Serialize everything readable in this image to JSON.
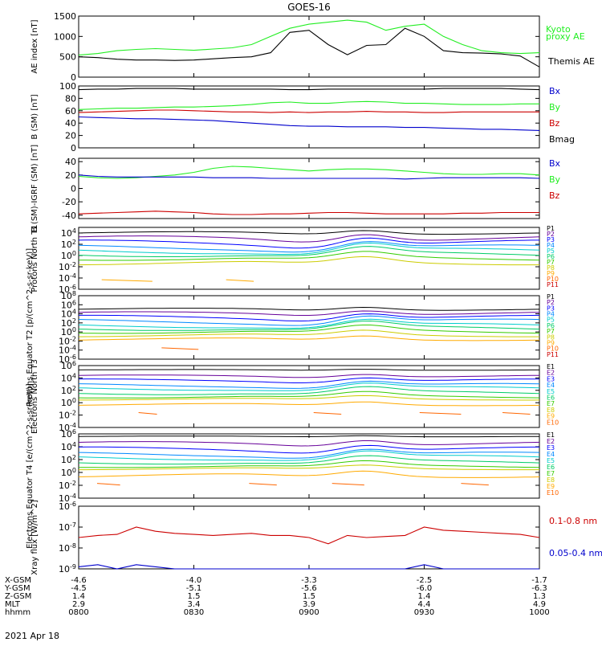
{
  "title": "GOES-16",
  "date": "2021 Apr 18",
  "colors": {
    "black": "#000000",
    "green": "#22ee22",
    "blue": "#0000cc",
    "red": "#cc0000",
    "p": [
      "#000000",
      "#660099",
      "#0000ff",
      "#0088ff",
      "#00cccc",
      "#00cc66",
      "#33cc00",
      "#cccc00",
      "#ffaa00",
      "#ff6600",
      "#cc0000"
    ]
  },
  "chart_data": [
    {
      "type": "line",
      "id": "ae",
      "ylabel": "AE index [nT]",
      "ylim": [
        0,
        1500
      ],
      "yticks": [
        "0",
        "500",
        "1000",
        "1500"
      ],
      "legend": [
        "Kyoto proxy AE",
        "Themis AE"
      ],
      "x": [
        "0800",
        "0805",
        "0810",
        "0815",
        "0820",
        "0825",
        "0830",
        "0835",
        "0840",
        "0845",
        "0850",
        "0855",
        "0900",
        "0905",
        "0910",
        "0915",
        "0920",
        "0925",
        "0930",
        "0935",
        "0940",
        "0945",
        "0950",
        "0955",
        "1000"
      ],
      "series": [
        {
          "name": "Kyoto proxy AE",
          "values": [
            540,
            580,
            650,
            680,
            700,
            680,
            660,
            690,
            720,
            800,
            1000,
            1200,
            1300,
            1350,
            1400,
            1350,
            1150,
            1250,
            1300,
            1000,
            800,
            650,
            600,
            580,
            600
          ]
        },
        {
          "name": "Themis AE",
          "values": [
            500,
            480,
            440,
            420,
            420,
            410,
            420,
            450,
            480,
            500,
            600,
            1100,
            1150,
            800,
            550,
            780,
            800,
            1200,
            1000,
            650,
            600,
            590,
            570,
            520,
            250
          ]
        }
      ]
    },
    {
      "type": "line",
      "id": "bsm",
      "ylabel": "B (SM) [nT]",
      "ylim": [
        0,
        100
      ],
      "yticks": [
        "0",
        "20",
        "40",
        "60",
        "80",
        "100"
      ],
      "legend": [
        "Bx",
        "By",
        "Bz",
        "Bmag"
      ],
      "series": [
        {
          "name": "Bmag",
          "values": [
            94,
            95,
            95,
            96,
            96,
            96,
            95,
            95,
            95,
            95,
            95,
            94,
            94,
            95,
            95,
            95,
            95,
            95,
            95,
            96,
            96,
            96,
            96,
            95,
            94
          ]
        },
        {
          "name": "By",
          "values": [
            62,
            63,
            64,
            64,
            65,
            66,
            66,
            67,
            68,
            70,
            73,
            74,
            72,
            72,
            74,
            75,
            74,
            72,
            72,
            71,
            70,
            70,
            70,
            71,
            71
          ]
        },
        {
          "name": "Bz",
          "values": [
            57,
            58,
            59,
            60,
            61,
            61,
            60,
            59,
            58,
            58,
            57,
            58,
            57,
            58,
            58,
            59,
            58,
            58,
            57,
            57,
            58,
            58,
            58,
            58,
            58
          ]
        },
        {
          "name": "Bx",
          "values": [
            50,
            49,
            48,
            47,
            47,
            46,
            45,
            44,
            42,
            40,
            38,
            36,
            35,
            35,
            34,
            34,
            34,
            33,
            33,
            32,
            31,
            30,
            30,
            29,
            28
          ]
        }
      ]
    },
    {
      "type": "line",
      "id": "bsm_igrf",
      "ylabel": "B (SM)-IGRF (SM) [nT]",
      "ylim": [
        -45,
        45
      ],
      "yticks": [
        "-40",
        "-20",
        "0",
        "20",
        "40"
      ],
      "legend": [
        "Bx",
        "By",
        "Bz"
      ],
      "series": [
        {
          "name": "By",
          "values": [
            18,
            16,
            15,
            16,
            18,
            20,
            24,
            30,
            33,
            32,
            30,
            28,
            26,
            28,
            29,
            29,
            28,
            26,
            24,
            22,
            21,
            21,
            22,
            22,
            20
          ]
        },
        {
          "name": "Bx",
          "values": [
            20,
            18,
            17,
            17,
            17,
            17,
            17,
            16,
            16,
            16,
            15,
            15,
            15,
            15,
            15,
            15,
            15,
            14,
            15,
            16,
            16,
            16,
            16,
            16,
            15
          ]
        },
        {
          "name": "Bz",
          "values": [
            -38,
            -37,
            -36,
            -35,
            -34,
            -35,
            -36,
            -38,
            -39,
            -39,
            -38,
            -38,
            -37,
            -36,
            -36,
            -37,
            -38,
            -38,
            -38,
            -38,
            -37,
            -37,
            -36,
            -36,
            -36
          ]
        }
      ]
    },
    {
      "type": "line",
      "id": "protons_t1",
      "ylabel": "Protons North T1",
      "yscale": "log",
      "ylim": [
        -6,
        5
      ],
      "yticks": [
        "10^4",
        "10^2",
        "10^0",
        "10^-2",
        "10^-4",
        "10^-6"
      ],
      "legend": [
        "P1",
        "P2",
        "P3",
        "P4",
        "P5",
        "P6",
        "P7",
        "P8",
        "P9",
        "P10",
        "P11"
      ]
    },
    {
      "type": "line",
      "id": "protons_t2",
      "ylabel": "Protons Equator T2 [p/(cm^2-s-sr-keV)]",
      "yscale": "log",
      "ylim": [
        -6,
        8
      ],
      "yticks": [
        "10^8",
        "10^6",
        "10^4",
        "10^2",
        "10^0",
        "10^-2",
        "10^-4",
        "10^-6"
      ],
      "legend": [
        "P1",
        "P2",
        "P3",
        "P4",
        "P5",
        "P6",
        "P7",
        "P8",
        "P9",
        "P10",
        "P11"
      ]
    },
    {
      "type": "line",
      "id": "electrons_t3",
      "ylabel": "Electrons North T3",
      "yscale": "log",
      "ylim": [
        -4,
        6
      ],
      "yticks": [
        "10^6",
        "10^4",
        "10^2",
        "10^0",
        "10^-2",
        "10^-4"
      ],
      "legend": [
        "E1",
        "E2",
        "E3",
        "E4",
        "E5",
        "E6",
        "E7",
        "E8",
        "E9",
        "E10"
      ]
    },
    {
      "type": "line",
      "id": "electrons_t4",
      "ylabel": "Electrons Equator T4 [e/(cm^2-s-sr-keV)]",
      "yscale": "log",
      "ylim": [
        -4,
        6
      ],
      "yticks": [
        "10^6",
        "10^4",
        "10^2",
        "10^0",
        "10^-2",
        "10^-4"
      ],
      "legend": [
        "E1",
        "E2",
        "E3",
        "E4",
        "E5",
        "E6",
        "E7",
        "E8",
        "E9",
        "E10"
      ]
    },
    {
      "type": "line",
      "id": "xray",
      "ylabel": "Xray flux [W/m^2]",
      "yscale": "log",
      "ylim": [
        -9,
        -6
      ],
      "yticks": [
        "10^-6",
        "10^-7",
        "10^-8",
        "10^-9"
      ],
      "legend": [
        "0.1-0.8 nm",
        "0.05-0.4 nm"
      ],
      "series": [
        {
          "name": "0.1-0.8 nm",
          "values": [
            -7.5,
            -7.4,
            -7.35,
            -7.0,
            -7.2,
            -7.3,
            -7.35,
            -7.4,
            -7.35,
            -7.3,
            -7.4,
            -7.4,
            -7.5,
            -7.8,
            -7.4,
            -7.5,
            -7.45,
            -7.4,
            -7.0,
            -7.15,
            -7.2,
            -7.25,
            -7.3,
            -7.35,
            -7.5
          ]
        },
        {
          "name": "0.05-0.4 nm",
          "values": [
            -8.9,
            -8.8,
            -9.0,
            -8.8,
            -8.9,
            -9.0,
            -9.0,
            -9.0,
            -9.0,
            -9.0,
            -9.0,
            -9.0,
            -9.0,
            -9.0,
            -9.0,
            -9.0,
            -9.0,
            -9.0,
            -8.8,
            -9.0,
            -9.0,
            -9.0,
            -9.0,
            -9.0,
            -9.0
          ]
        }
      ]
    }
  ],
  "ephemeris": {
    "labels": [
      "X-GSM",
      "Y-GSM",
      "Z-GSM",
      "MLT",
      "hhmm"
    ],
    "columns": [
      {
        "x": "-4.6",
        "y": "-4.5",
        "z": "1.4",
        "mlt": "2.9",
        "hhmm": "0800"
      },
      {
        "x": "-4.0",
        "y": "-5.1",
        "z": "1.5",
        "mlt": "3.4",
        "hhmm": "0830"
      },
      {
        "x": "-3.3",
        "y": "-5.6",
        "z": "1.5",
        "mlt": "3.9",
        "hhmm": "0900"
      },
      {
        "x": "-2.5",
        "y": "-6.0",
        "z": "1.4",
        "mlt": "4.4",
        "hhmm": "0930"
      },
      {
        "x": "-1.7",
        "y": "-6.3",
        "z": "1.3",
        "mlt": "4.9",
        "hhmm": "1000"
      }
    ]
  }
}
